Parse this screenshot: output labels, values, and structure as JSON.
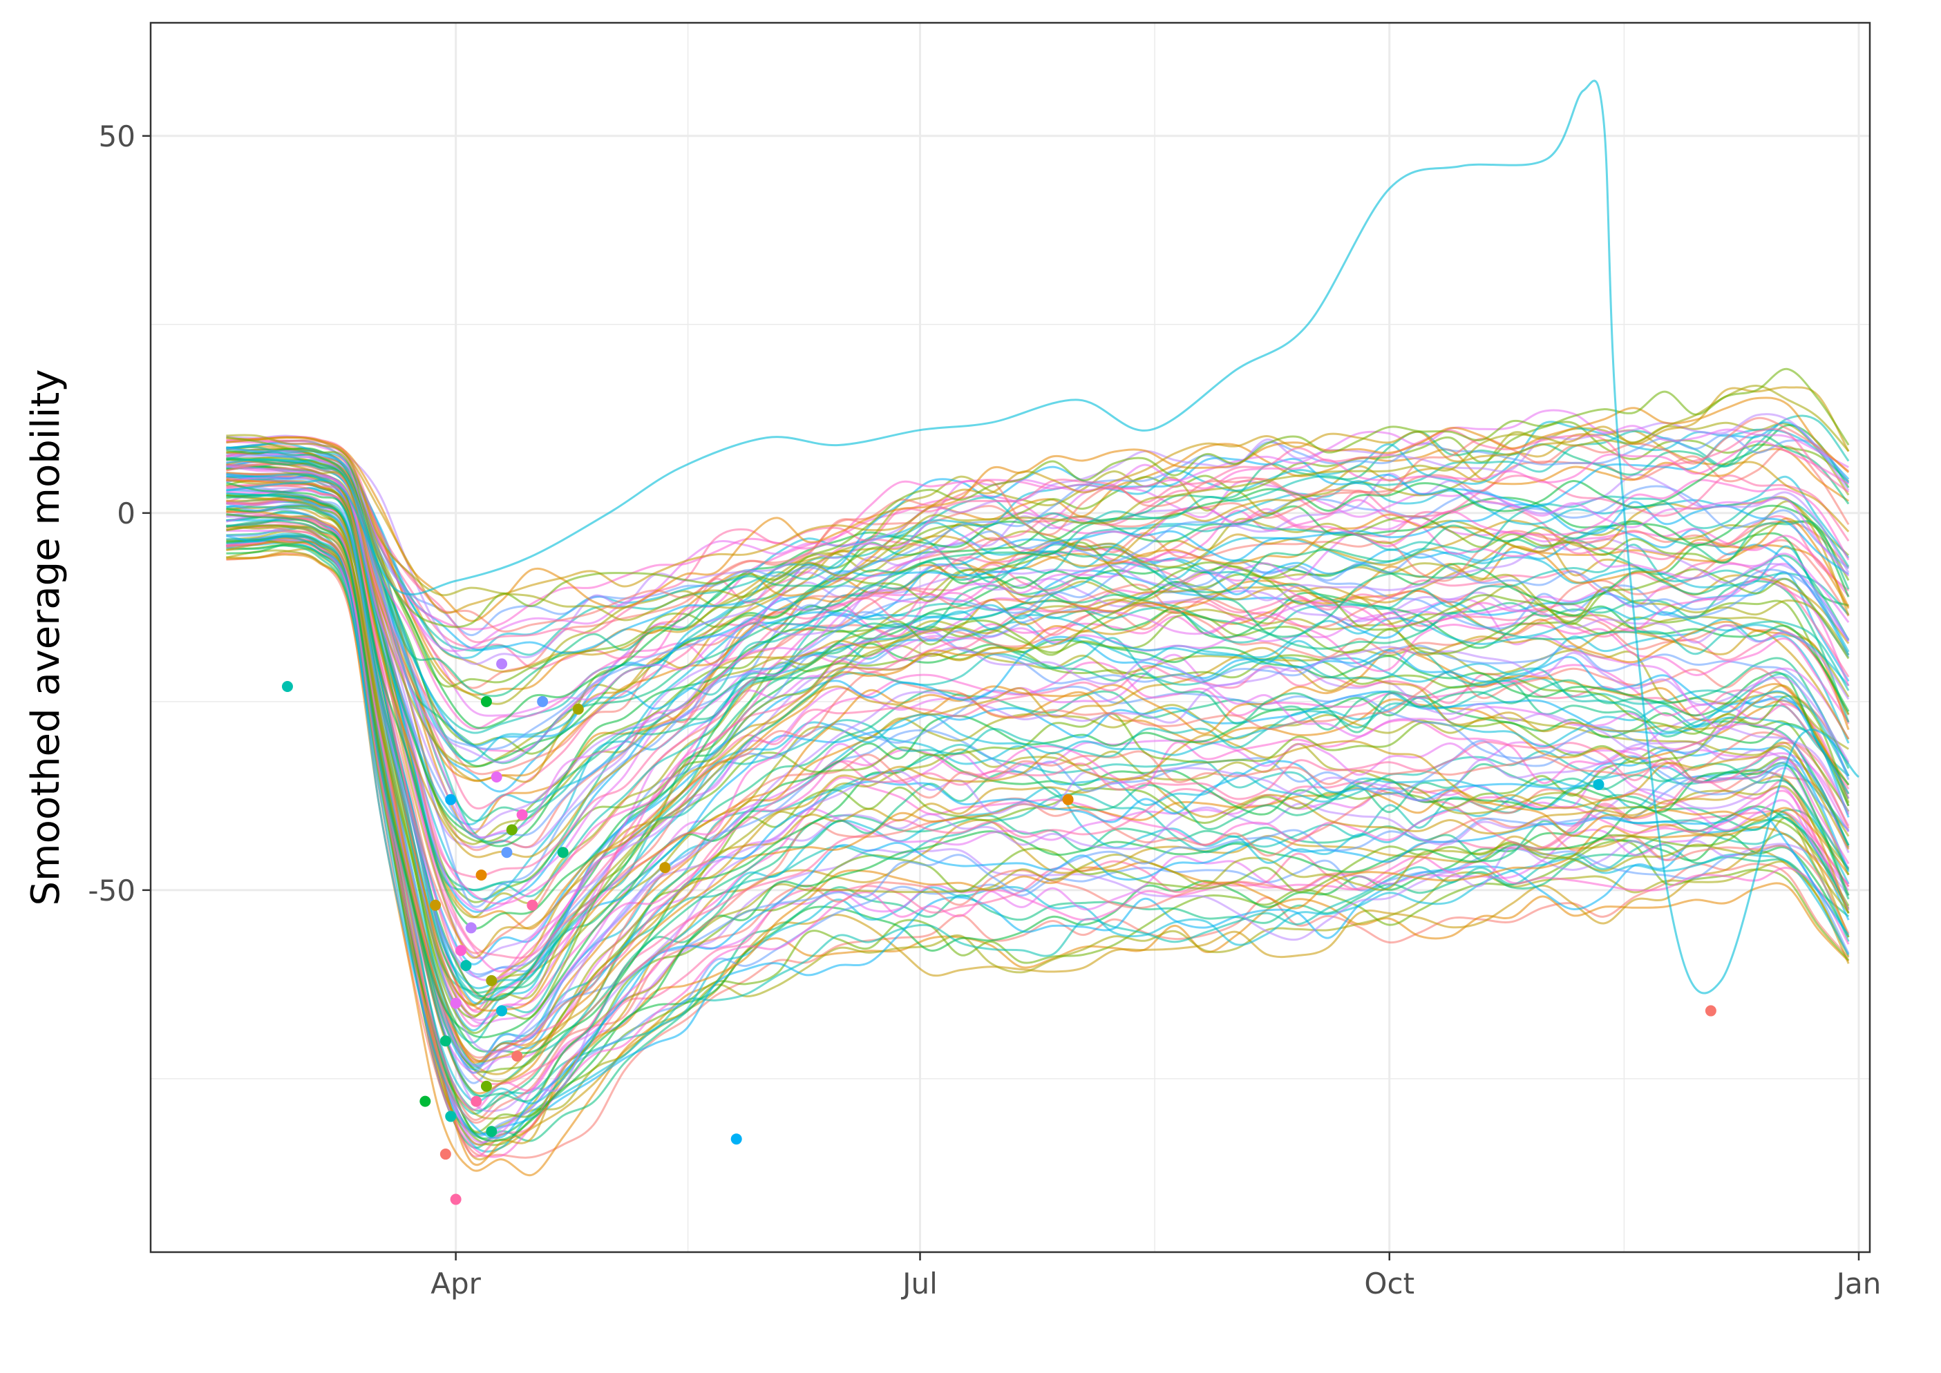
{
  "chart_data": {
    "type": "line",
    "title": "",
    "xlabel": "",
    "ylabel": "Smoothed average mobility",
    "x_range": [
      "2020-02-15",
      "2021-01-01"
    ],
    "ylim": [
      -98,
      65
    ],
    "x_ticks": [
      {
        "date": "2020-04-01",
        "label": "Apr"
      },
      {
        "date": "2020-07-01",
        "label": "Jul"
      },
      {
        "date": "2020-10-01",
        "label": "Oct"
      },
      {
        "date": "2021-01-01",
        "label": "Jan"
      }
    ],
    "y_ticks": [
      50,
      0,
      -50
    ],
    "grid": true,
    "legend": "none",
    "highlight_series": {
      "name": "",
      "points": [
        [
          "2020-02-16",
          3
        ],
        [
          "2020-03-01",
          4
        ],
        [
          "2020-03-10",
          3
        ],
        [
          "2020-03-20",
          -10
        ],
        [
          "2020-04-01",
          -9
        ],
        [
          "2020-04-15",
          -6
        ],
        [
          "2020-05-01",
          0
        ],
        [
          "2020-05-15",
          6
        ],
        [
          "2020-06-01",
          10
        ],
        [
          "2020-06-15",
          9
        ],
        [
          "2020-07-01",
          11
        ],
        [
          "2020-07-15",
          12
        ],
        [
          "2020-08-01",
          15
        ],
        [
          "2020-08-15",
          11
        ],
        [
          "2020-09-01",
          19
        ],
        [
          "2020-09-15",
          25
        ],
        [
          "2020-10-01",
          43
        ],
        [
          "2020-10-15",
          46
        ],
        [
          "2020-11-01",
          47
        ],
        [
          "2020-11-08",
          56
        ],
        [
          "2020-11-12",
          52
        ],
        [
          "2020-11-15",
          8
        ],
        [
          "2020-11-25",
          -52
        ],
        [
          "2020-12-05",
          -62
        ],
        [
          "2020-12-20",
          -30
        ],
        [
          "2021-01-01",
          -35
        ]
      ]
    },
    "summary_bands": {
      "x": [
        "2020-02-16",
        "2020-03-01",
        "2020-03-10",
        "2020-03-20",
        "2020-04-01",
        "2020-04-15",
        "2020-05-01",
        "2020-05-15",
        "2020-06-01",
        "2020-06-15",
        "2020-07-01",
        "2020-08-01",
        "2020-09-01",
        "2020-10-01",
        "2020-11-01",
        "2020-12-01",
        "2020-12-20",
        "2021-01-01"
      ],
      "median": [
        3,
        3,
        2,
        -30,
        -62,
        -60,
        -45,
        -35,
        -25,
        -20,
        -18,
        -17,
        -18,
        -18,
        -20,
        -22,
        -20,
        -35
      ],
      "upper": [
        10,
        10,
        9,
        -5,
        -12,
        -10,
        -8,
        -6,
        -4,
        -2,
        2,
        5,
        8,
        10,
        12,
        14,
        16,
        8
      ],
      "lower": [
        -6,
        -5,
        -8,
        -50,
        -88,
        -85,
        -75,
        -68,
        -62,
        -58,
        -58,
        -58,
        -57,
        -55,
        -52,
        -50,
        -48,
        -62
      ]
    },
    "minimum_points": {
      "x": [
        "2020-03-30",
        "2020-03-31",
        "2020-04-01",
        "2020-03-30",
        "2020-04-02",
        "2020-04-07",
        "2020-04-09",
        "2020-04-12",
        "2020-04-04",
        "2020-04-08",
        "2020-04-11",
        "2020-03-28",
        "2020-03-31",
        "2020-04-06",
        "2020-04-10",
        "2020-04-13",
        "2020-04-03",
        "2020-04-05",
        "2020-04-08",
        "2020-04-14",
        "2020-03-26",
        "2020-04-01",
        "2020-04-07",
        "2020-04-10",
        "2020-04-25",
        "2020-04-18",
        "2020-05-12",
        "2020-05-26",
        "2020-07-30",
        "2020-11-11",
        "2020-12-03",
        "2020-02-28",
        "2020-04-16",
        "2020-04-22"
      ],
      "y": [
        -85,
        -80,
        -91,
        -70,
        -58,
        -25,
        -35,
        -42,
        -55,
        -62,
        -45,
        -52,
        -38,
        -48,
        -66,
        -72,
        -60,
        -78,
        -82,
        -40,
        -78,
        -65,
        -76,
        -20,
        -26,
        -25,
        -47,
        -83,
        -38,
        -36,
        -66,
        -23,
        -52,
        -45
      ]
    }
  }
}
